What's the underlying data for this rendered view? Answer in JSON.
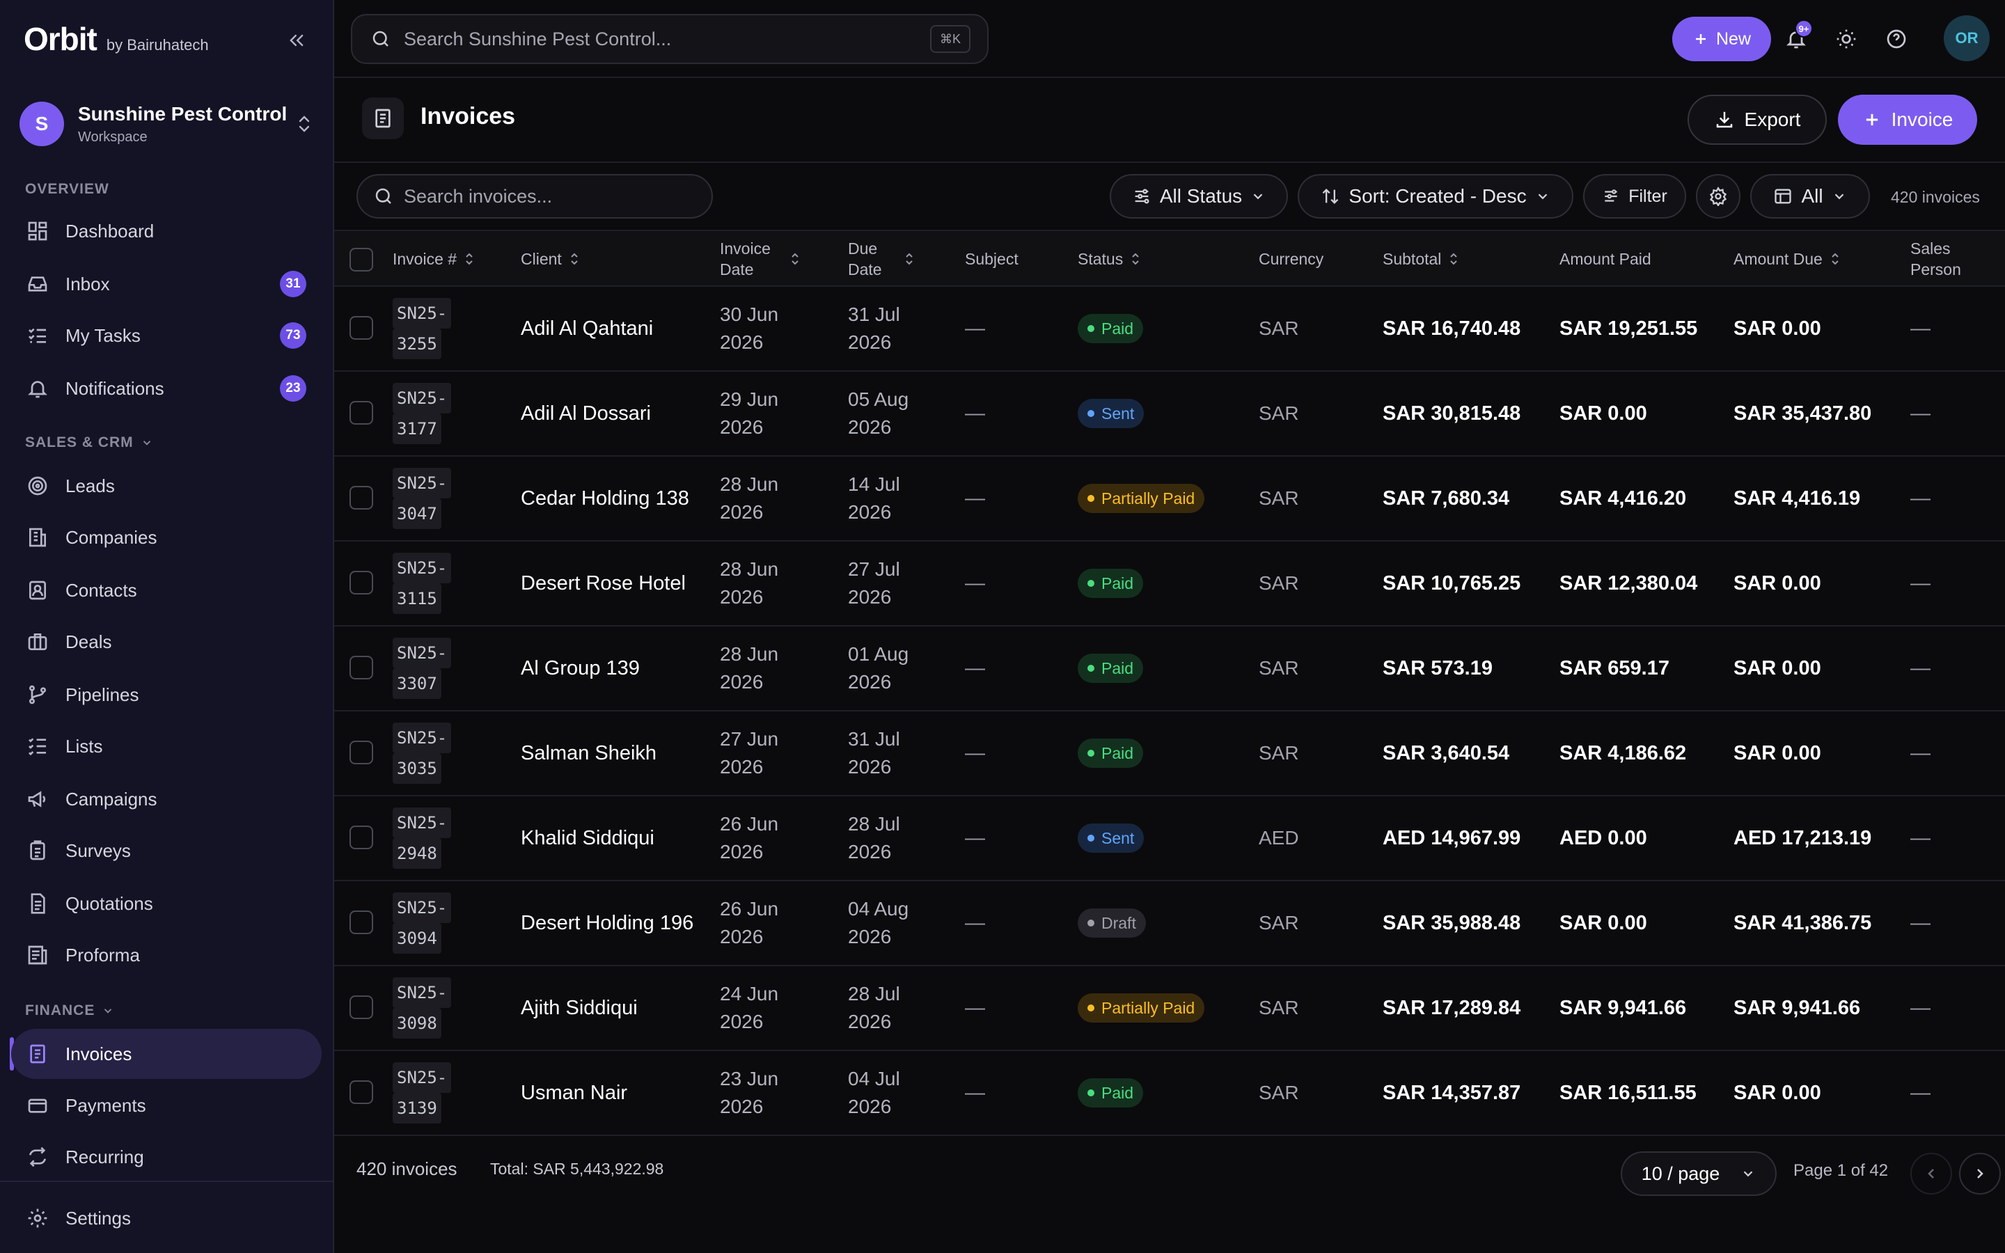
{
  "brand": {
    "logo": "Orbit",
    "byline": "by Bairuhatech"
  },
  "workspace": {
    "initial": "S",
    "name": "Sunshine Pest Control",
    "type": "Workspace"
  },
  "sidebar": {
    "overview_label": "OVERVIEW",
    "sales_label": "SALES & CRM",
    "finance_label": "FINANCE",
    "items": [
      {
        "label": "Dashboard",
        "icon": "dashboard-icon"
      },
      {
        "label": "Inbox",
        "icon": "inbox-icon",
        "badge": "31"
      },
      {
        "label": "My Tasks",
        "icon": "tasks-icon",
        "badge": "73"
      },
      {
        "label": "Notifications",
        "icon": "bell-icon",
        "badge": "23"
      },
      {
        "label": "Leads",
        "icon": "target-icon"
      },
      {
        "label": "Companies",
        "icon": "building-icon"
      },
      {
        "label": "Contacts",
        "icon": "contact-icon"
      },
      {
        "label": "Deals",
        "icon": "briefcase-icon"
      },
      {
        "label": "Pipelines",
        "icon": "pipeline-icon"
      },
      {
        "label": "Lists",
        "icon": "list-icon"
      },
      {
        "label": "Campaigns",
        "icon": "megaphone-icon"
      },
      {
        "label": "Surveys",
        "icon": "clipboard-icon"
      },
      {
        "label": "Quotations",
        "icon": "document-icon"
      },
      {
        "label": "Proforma",
        "icon": "proforma-icon"
      },
      {
        "label": "Invoices",
        "icon": "invoice-icon",
        "active": true
      },
      {
        "label": "Payments",
        "icon": "card-icon"
      },
      {
        "label": "Recurring",
        "icon": "repeat-icon"
      }
    ],
    "settings": "Settings"
  },
  "topbar": {
    "search_placeholder": "Search Sunshine Pest Control...",
    "shortcut": "⌘K",
    "new_label": "New",
    "notif_badge": "9+",
    "user_initials": "OR"
  },
  "page": {
    "title": "Invoices",
    "export_label": "Export",
    "invoice_label": "Invoice"
  },
  "filters": {
    "search_placeholder": "Search invoices...",
    "status": "All Status",
    "sort": "Sort: Created - Desc",
    "filter": "Filter",
    "view": "All",
    "count": "420 invoices"
  },
  "table": {
    "columns": [
      "Invoice #",
      "Client",
      "Invoice Date",
      "Due Date",
      "Subject",
      "Status",
      "Currency",
      "Subtotal",
      "Amount Paid",
      "Amount Due",
      "Sales Person"
    ],
    "rows": [
      {
        "num1": "SN25-",
        "num2": "3255",
        "client": "Adil Al Qahtani",
        "inv1": "30 Jun",
        "inv2": "2026",
        "due1": "31 Jul",
        "due2": "2026",
        "subject": "—",
        "status": "Paid",
        "currency": "SAR",
        "subtotal": "SAR 16,740.48",
        "paid": "SAR 19,251.55",
        "due": "SAR 0.00",
        "sales": "—"
      },
      {
        "num1": "SN25-",
        "num2": "3177",
        "client": "Adil Al Dossari",
        "inv1": "29 Jun",
        "inv2": "2026",
        "due1": "05 Aug",
        "due2": "2026",
        "subject": "—",
        "status": "Sent",
        "currency": "SAR",
        "subtotal": "SAR 30,815.48",
        "paid": "SAR 0.00",
        "due": "SAR 35,437.80",
        "sales": "—"
      },
      {
        "num1": "SN25-",
        "num2": "3047",
        "client": "Cedar Holding 138",
        "inv1": "28 Jun",
        "inv2": "2026",
        "due1": "14 Jul",
        "due2": "2026",
        "subject": "—",
        "status": "Partially Paid",
        "currency": "SAR",
        "subtotal": "SAR 7,680.34",
        "paid": "SAR 4,416.20",
        "due": "SAR 4,416.19",
        "sales": "—"
      },
      {
        "num1": "SN25-",
        "num2": "3115",
        "client": "Desert Rose Hotel",
        "inv1": "28 Jun",
        "inv2": "2026",
        "due1": "27 Jul",
        "due2": "2026",
        "subject": "—",
        "status": "Paid",
        "currency": "SAR",
        "subtotal": "SAR 10,765.25",
        "paid": "SAR 12,380.04",
        "due": "SAR 0.00",
        "sales": "—"
      },
      {
        "num1": "SN25-",
        "num2": "3307",
        "client": "Al Group 139",
        "inv1": "28 Jun",
        "inv2": "2026",
        "due1": "01 Aug",
        "due2": "2026",
        "subject": "—",
        "status": "Paid",
        "currency": "SAR",
        "subtotal": "SAR 573.19",
        "paid": "SAR 659.17",
        "due": "SAR 0.00",
        "sales": "—"
      },
      {
        "num1": "SN25-",
        "num2": "3035",
        "client": "Salman Sheikh",
        "inv1": "27 Jun",
        "inv2": "2026",
        "due1": "31 Jul",
        "due2": "2026",
        "subject": "—",
        "status": "Paid",
        "currency": "SAR",
        "subtotal": "SAR 3,640.54",
        "paid": "SAR 4,186.62",
        "due": "SAR 0.00",
        "sales": "—"
      },
      {
        "num1": "SN25-",
        "num2": "2948",
        "client": "Khalid Siddiqui",
        "inv1": "26 Jun",
        "inv2": "2026",
        "due1": "28 Jul",
        "due2": "2026",
        "subject": "—",
        "status": "Sent",
        "currency": "AED",
        "subtotal": "AED 14,967.99",
        "paid": "AED 0.00",
        "due": "AED 17,213.19",
        "sales": "—"
      },
      {
        "num1": "SN25-",
        "num2": "3094",
        "client": "Desert Holding 196",
        "inv1": "26 Jun",
        "inv2": "2026",
        "due1": "04 Aug",
        "due2": "2026",
        "subject": "—",
        "status": "Draft",
        "currency": "SAR",
        "subtotal": "SAR 35,988.48",
        "paid": "SAR 0.00",
        "due": "SAR 41,386.75",
        "sales": "—"
      },
      {
        "num1": "SN25-",
        "num2": "3098",
        "client": "Ajith Siddiqui",
        "inv1": "24 Jun",
        "inv2": "2026",
        "due1": "28 Jul",
        "due2": "2026",
        "subject": "—",
        "status": "Partially Paid",
        "currency": "SAR",
        "subtotal": "SAR 17,289.84",
        "paid": "SAR 9,941.66",
        "due": "SAR 9,941.66",
        "sales": "—"
      },
      {
        "num1": "SN25-",
        "num2": "3139",
        "client": "Usman Nair",
        "inv1": "23 Jun",
        "inv2": "2026",
        "due1": "04 Jul",
        "due2": "2026",
        "subject": "—",
        "status": "Paid",
        "currency": "SAR",
        "subtotal": "SAR 14,357.87",
        "paid": "SAR 16,511.55",
        "due": "SAR 0.00",
        "sales": "—"
      }
    ]
  },
  "status_colors": {
    "Paid": {
      "bg": "#13301f",
      "fg": "#4ade80"
    },
    "Sent": {
      "bg": "#172640",
      "fg": "#60a5fa"
    },
    "Partially Paid": {
      "bg": "#3a2a0c",
      "fg": "#fbbf24"
    },
    "Draft": {
      "bg": "#25252b",
      "fg": "#a1a1aa"
    }
  },
  "footer": {
    "count": "420 invoices",
    "total": "Total: SAR 5,443,922.98",
    "per_page": "10 / page",
    "page_info": "Page 1 of 42"
  }
}
